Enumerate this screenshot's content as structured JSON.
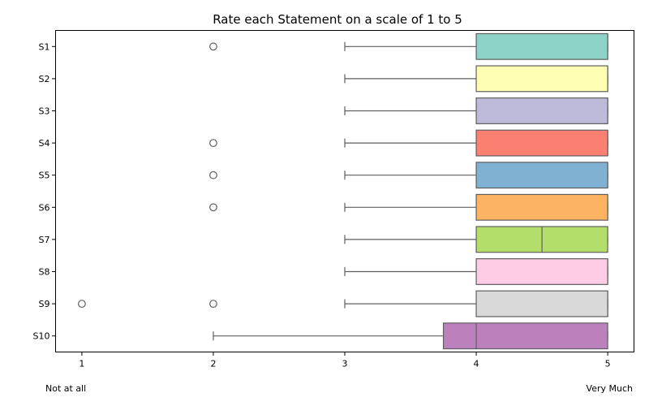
{
  "chart_data": {
    "type": "boxplot",
    "orientation": "horizontal",
    "title": "Rate each Statement on a scale of 1 to 5",
    "xlabel": "",
    "ylabel": "",
    "xlim": [
      0.8,
      5.2
    ],
    "xticks": [
      1,
      2,
      3,
      4,
      5
    ],
    "grid": false,
    "legend": "none",
    "categories": [
      "S1",
      "S2",
      "S3",
      "S4",
      "S5",
      "S6",
      "S7",
      "S8",
      "S9",
      "S10"
    ],
    "boxes": [
      {
        "label": "S1",
        "whisker_low": 3,
        "q1": 4,
        "median": 5,
        "q3": 5,
        "whisker_high": 5,
        "outliers": [
          2
        ],
        "color": "#8dd3c7"
      },
      {
        "label": "S2",
        "whisker_low": 3,
        "q1": 4,
        "median": 5,
        "q3": 5,
        "whisker_high": 5,
        "outliers": [],
        "color": "#ffffb3"
      },
      {
        "label": "S3",
        "whisker_low": 3,
        "q1": 4,
        "median": 5,
        "q3": 5,
        "whisker_high": 5,
        "outliers": [],
        "color": "#bebada"
      },
      {
        "label": "S4",
        "whisker_low": 3,
        "q1": 4,
        "median": 5,
        "q3": 5,
        "whisker_high": 5,
        "outliers": [
          2
        ],
        "color": "#fb8072"
      },
      {
        "label": "S5",
        "whisker_low": 3,
        "q1": 4,
        "median": 5,
        "q3": 5,
        "whisker_high": 5,
        "outliers": [
          2
        ],
        "color": "#80b1d3"
      },
      {
        "label": "S6",
        "whisker_low": 3,
        "q1": 4,
        "median": 5,
        "q3": 5,
        "whisker_high": 5,
        "outliers": [
          2
        ],
        "color": "#fdb462"
      },
      {
        "label": "S7",
        "whisker_low": 3,
        "q1": 4,
        "median": 4.5,
        "q3": 5,
        "whisker_high": 5,
        "outliers": [],
        "color": "#b3de69"
      },
      {
        "label": "S8",
        "whisker_low": 3,
        "q1": 4,
        "median": 5,
        "q3": 5,
        "whisker_high": 5,
        "outliers": [],
        "color": "#fccde5"
      },
      {
        "label": "S9",
        "whisker_low": 3,
        "q1": 4,
        "median": 5,
        "q3": 5,
        "whisker_high": 5,
        "outliers": [
          1,
          2
        ],
        "color": "#d9d9d9"
      },
      {
        "label": "S10",
        "whisker_low": 2,
        "q1": 3.75,
        "median": 4,
        "q3": 5,
        "whisker_high": 5,
        "outliers": [],
        "color": "#bc80bd"
      }
    ]
  },
  "annotations": {
    "left": "Not at all",
    "right": "Very Much"
  }
}
